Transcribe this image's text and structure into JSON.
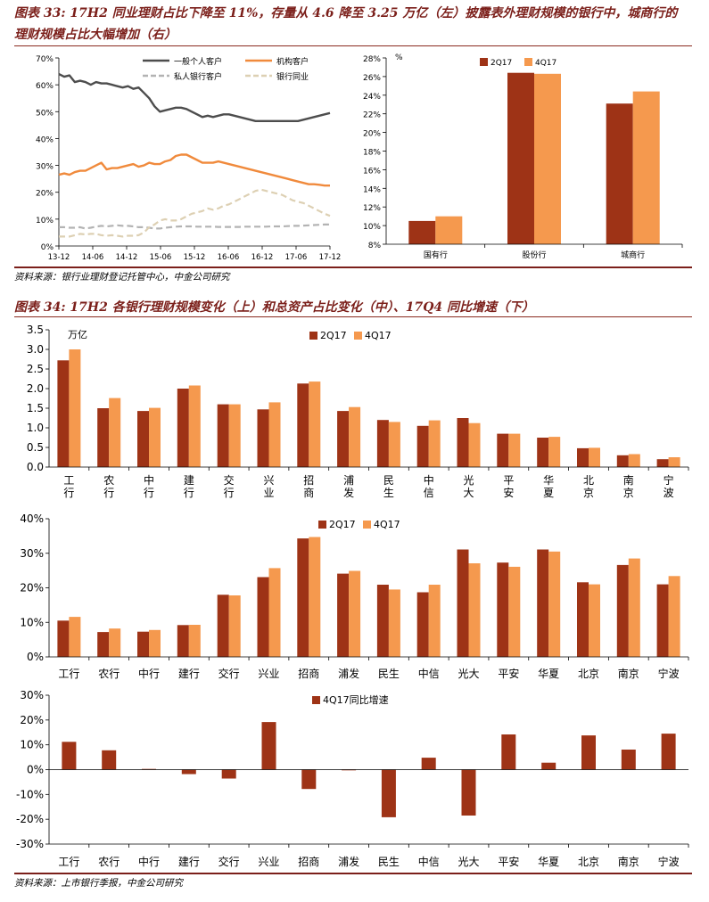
{
  "figure33": {
    "title_line1": "图表 33: 17H2 同业理财占比下降至 11%，存量从 4.6 降至 3.25 万亿（左）披露表外理财规模的银行中，城商行的",
    "title_line2": "理财规模占比大幅增加（右）",
    "source": "资料来源：银行业理财登记托管中心，中金公司研究"
  },
  "figure34": {
    "title": "图表 34: 17H2 各银行理财规模变化（上）和总资产占比变化（中）、17Q4 同比增速（下）",
    "source": "资料来源：上市银行季报，中金公司研究"
  },
  "colors": {
    "dark": "#9e3316",
    "light": "#f5994e",
    "line_gray": "#4d4d4d",
    "line_orange": "#f08a3c",
    "line_lightgray": "#b3b3b3",
    "line_beige": "#ddd0b3"
  },
  "chart_data": [
    {
      "id": "line-share",
      "type": "line",
      "title": "",
      "x_tick_labels": [
        "13-12",
        "14-06",
        "14-12",
        "15-06",
        "15-12",
        "16-06",
        "16-12",
        "17-06",
        "17-12"
      ],
      "yticks": [
        "0%",
        "10%",
        "20%",
        "30%",
        "40%",
        "50%",
        "60%",
        "70%"
      ],
      "ylim": [
        0,
        70
      ],
      "series": [
        {
          "name": "一般个人客户",
          "color": "#4d4d4d",
          "dash": false,
          "values": [
            64,
            63,
            63.5,
            61,
            61.5,
            61,
            60,
            61,
            60.5,
            60.5,
            60,
            59.5,
            59,
            59.5,
            58.5,
            59,
            57,
            55,
            52,
            50,
            50.5,
            51,
            51.5,
            51.5,
            51,
            50,
            49,
            48,
            48.5,
            48,
            48.5,
            49,
            49,
            48.5,
            48,
            47.5,
            47,
            46.5,
            46.5,
            46.5,
            46.5,
            46.5,
            46.5,
            46.5,
            46.5,
            46.5,
            47,
            47.5,
            48,
            48.5,
            49,
            49.5
          ]
        },
        {
          "name": "机构客户",
          "color": "#f08a3c",
          "dash": false,
          "values": [
            26.5,
            27,
            26.5,
            27.5,
            28,
            28,
            29,
            30,
            31,
            28.5,
            29,
            29,
            29.5,
            30,
            30.5,
            29.5,
            30,
            31,
            30.5,
            30.5,
            31.5,
            32,
            33.5,
            34,
            34,
            33,
            32,
            31,
            31,
            31,
            31.5,
            31,
            30.5,
            30,
            29.5,
            29,
            28.5,
            28,
            27.5,
            27,
            26.5,
            26,
            25.5,
            25,
            24.5,
            24,
            23.5,
            23,
            23,
            22.8,
            22.5,
            22.5
          ]
        },
        {
          "name": "私人银行客户",
          "color": "#b3b3b3",
          "dash": true,
          "values": [
            7,
            7,
            6.8,
            6.8,
            7,
            6.5,
            6.8,
            7.2,
            7.5,
            7.3,
            7.5,
            7.7,
            7.5,
            7.5,
            7.3,
            7,
            7,
            6.8,
            6.5,
            6.5,
            6.8,
            7,
            7.2,
            7.3,
            7.3,
            7.3,
            7.2,
            7.2,
            7.2,
            7.2,
            7.1,
            7.1,
            7.1,
            7.1,
            7.1,
            7.2,
            7.2,
            7.2,
            7.2,
            7.2,
            7.3,
            7.3,
            7.3,
            7.4,
            7.5,
            7.5,
            7.6,
            7.7,
            7.8,
            7.9,
            8,
            8
          ]
        },
        {
          "name": "银行同业",
          "color": "#ddd0b3",
          "dash": true,
          "values": [
            3.5,
            3.5,
            3.5,
            4,
            4.5,
            4.3,
            4.5,
            4.5,
            4,
            3.8,
            4,
            3.8,
            3.5,
            3.8,
            3.8,
            4,
            5,
            7,
            8,
            9.5,
            10,
            9.5,
            9.5,
            10,
            11,
            12,
            12.5,
            13,
            14,
            13.5,
            14,
            15,
            15.5,
            16.5,
            17.5,
            18.5,
            19.5,
            20.5,
            21,
            20.5,
            20,
            19.5,
            19,
            18,
            17,
            16.5,
            16,
            15,
            14,
            13,
            12,
            11.2
          ]
        }
      ]
    },
    {
      "id": "bar-share-by-type",
      "type": "bar",
      "title": "",
      "y_unit_label": "%",
      "categories": [
        "国有行",
        "股份行",
        "城商行"
      ],
      "yticks": [
        "8%",
        "10%",
        "12%",
        "14%",
        "16%",
        "18%",
        "20%",
        "22%",
        "24%",
        "26%",
        "28%"
      ],
      "ylim": [
        8,
        28
      ],
      "series": [
        {
          "name": "2Q17",
          "color": "#9e3316",
          "values": [
            10.5,
            26.4,
            23.1
          ]
        },
        {
          "name": "4Q17",
          "color": "#f5994e",
          "values": [
            11.0,
            26.3,
            24.4
          ]
        }
      ]
    },
    {
      "id": "bar-wmp-size",
      "type": "bar",
      "title": "",
      "y_unit_label": "万亿",
      "categories": [
        "工行",
        "农行",
        "中行",
        "建行",
        "交行",
        "兴业",
        "招商",
        "浦发",
        "民生",
        "中信",
        "光大",
        "平安",
        "华夏",
        "北京",
        "南京",
        "宁波"
      ],
      "yticks": [
        "0.0",
        "0.5",
        "1.0",
        "1.5",
        "2.0",
        "2.5",
        "3.0",
        "3.5"
      ],
      "ylim": [
        0,
        3.5
      ],
      "series": [
        {
          "name": "2Q17",
          "color": "#9e3316",
          "values": [
            2.72,
            1.5,
            1.43,
            2.0,
            1.6,
            1.47,
            2.13,
            1.43,
            1.2,
            1.05,
            1.25,
            0.85,
            0.75,
            0.48,
            0.3,
            0.2
          ]
        },
        {
          "name": "4Q17",
          "color": "#f5994e",
          "values": [
            3.0,
            1.76,
            1.51,
            2.08,
            1.6,
            1.65,
            2.18,
            1.53,
            1.15,
            1.19,
            1.12,
            0.85,
            0.77,
            0.49,
            0.33,
            0.25
          ]
        }
      ]
    },
    {
      "id": "bar-asset-share",
      "type": "bar",
      "title": "",
      "categories": [
        "工行",
        "农行",
        "中行",
        "建行",
        "交行",
        "兴业",
        "招商",
        "浦发",
        "民生",
        "中信",
        "光大",
        "平安",
        "华夏",
        "北京",
        "南京",
        "宁波"
      ],
      "yticks": [
        "0%",
        "10%",
        "20%",
        "30%",
        "40%"
      ],
      "ylim": [
        0,
        40
      ],
      "series": [
        {
          "name": "2Q17",
          "color": "#9e3316",
          "values": [
            10.5,
            7.2,
            7.3,
            9.2,
            18.0,
            23.1,
            34.3,
            24.1,
            20.9,
            18.7,
            31.1,
            27.3,
            31.1,
            21.6,
            26.6,
            21.0
          ]
        },
        {
          "name": "4Q17",
          "color": "#f5994e",
          "values": [
            11.6,
            8.2,
            7.8,
            9.3,
            17.8,
            25.7,
            34.7,
            24.9,
            19.5,
            20.9,
            27.1,
            26.1,
            30.5,
            21.0,
            28.5,
            23.4
          ]
        }
      ]
    },
    {
      "id": "bar-yoy-growth",
      "type": "bar",
      "title": "",
      "categories": [
        "工行",
        "农行",
        "中行",
        "建行",
        "交行",
        "兴业",
        "招商",
        "浦发",
        "民生",
        "中信",
        "光大",
        "平安",
        "华夏",
        "北京",
        "南京",
        "宁波"
      ],
      "yticks": [
        "-30%",
        "-20%",
        "-10%",
        "0%",
        "10%",
        "20%",
        "30%"
      ],
      "ylim": [
        -30,
        30
      ],
      "series": [
        {
          "name": "4Q17同比增速",
          "color": "#9e3316",
          "values": [
            11.2,
            7.8,
            0.3,
            -1.8,
            -3.6,
            19.2,
            -7.8,
            -0.3,
            -19.2,
            4.8,
            -18.5,
            14.2,
            2.8,
            13.8,
            8.1,
            14.5
          ]
        }
      ]
    }
  ]
}
